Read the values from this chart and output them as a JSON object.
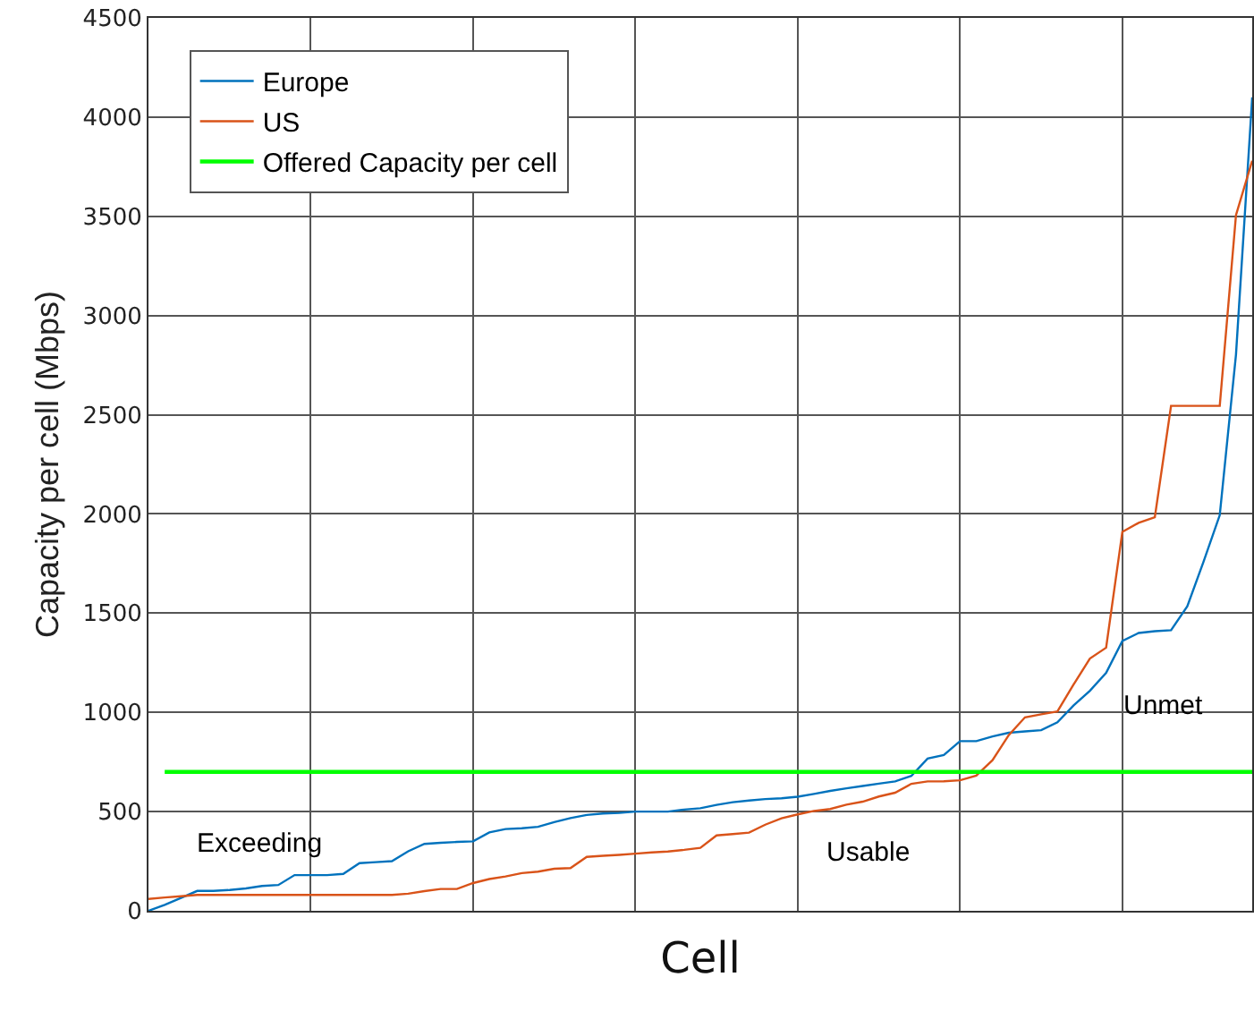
{
  "chart_data": {
    "type": "line",
    "xlabel": "Cell",
    "ylabel": "Capacity per cell (Mbps)",
    "categories": [
      null,
      null,
      null,
      null,
      null,
      null,
      null,
      null,
      null,
      null,
      null,
      null,
      null,
      null,
      null,
      null,
      null,
      null,
      null,
      null,
      null,
      null,
      null,
      null,
      null,
      null,
      null,
      null,
      null,
      null,
      null,
      null,
      null,
      null,
      null,
      null,
      null,
      null,
      null,
      null,
      null,
      null,
      null,
      null,
      null,
      null,
      null,
      null,
      null,
      null,
      null,
      null,
      null,
      null,
      null,
      null,
      null,
      null,
      null,
      null,
      null,
      null,
      null,
      null,
      null,
      null,
      null,
      null,
      null
    ],
    "ylim": [
      0,
      4500
    ],
    "yticks": [
      0,
      500,
      1000,
      1500,
      2000,
      2500,
      3000,
      3500,
      4000,
      4500
    ],
    "grid": true,
    "legend": "top left",
    "marker": "none",
    "line_style": "solid",
    "series": [
      {
        "name": "Europe",
        "color": "#0072bd",
        "values": [
          0,
          30,
          65,
          100,
          100,
          105,
          113,
          125,
          130,
          180,
          180,
          180,
          186,
          240,
          245,
          250,
          300,
          337,
          343,
          347,
          350,
          395,
          412,
          416,
          423,
          447,
          467,
          483,
          490,
          493,
          500,
          500,
          500,
          510,
          517,
          534,
          547,
          556,
          563,
          567,
          575,
          589,
          604,
          617,
          629,
          641,
          652,
          680,
          767,
          785,
          855,
          855,
          879,
          897,
          904,
          910,
          950,
          1035,
          1109,
          1199,
          1360,
          1400,
          1409,
          1414,
          1535,
          1759,
          1994,
          2803,
          4100
        ]
      },
      {
        "name": "US",
        "color": "#d95319",
        "values": [
          60,
          67,
          73,
          80,
          80,
          80,
          80,
          80,
          80,
          80,
          80,
          80,
          80,
          80,
          80,
          80,
          86,
          99,
          110,
          110,
          140,
          160,
          173,
          190,
          197,
          212,
          215,
          272,
          277,
          282,
          288,
          294,
          299,
          307,
          317,
          380,
          387,
          394,
          434,
          466,
          486,
          503,
          513,
          535,
          550,
          576,
          595,
          640,
          652,
          653,
          658,
          681,
          759,
          885,
          975,
          990,
          1005,
          1141,
          1271,
          1326,
          1910,
          1955,
          1983,
          2545,
          2545,
          2545,
          2545,
          3506,
          3780
        ]
      },
      {
        "name": "Offered Capacity per cell",
        "color": "#00ff00",
        "values": [
          null,
          700,
          700,
          700,
          700,
          700,
          700,
          700,
          700,
          700,
          700,
          700,
          700,
          700,
          700,
          700,
          700,
          700,
          700,
          700,
          700,
          700,
          700,
          700,
          700,
          700,
          700,
          700,
          700,
          700,
          700,
          700,
          700,
          700,
          700,
          700,
          700,
          700,
          700,
          700,
          700,
          700,
          700,
          700,
          700,
          700,
          700,
          700,
          700,
          700,
          700,
          700,
          700,
          700,
          700,
          700,
          700,
          700,
          700,
          700,
          700,
          700,
          700,
          700,
          700,
          700,
          700,
          700,
          700
        ]
      }
    ],
    "annotations": [
      "Exceeding",
      "Usable",
      "Unmet"
    ]
  }
}
